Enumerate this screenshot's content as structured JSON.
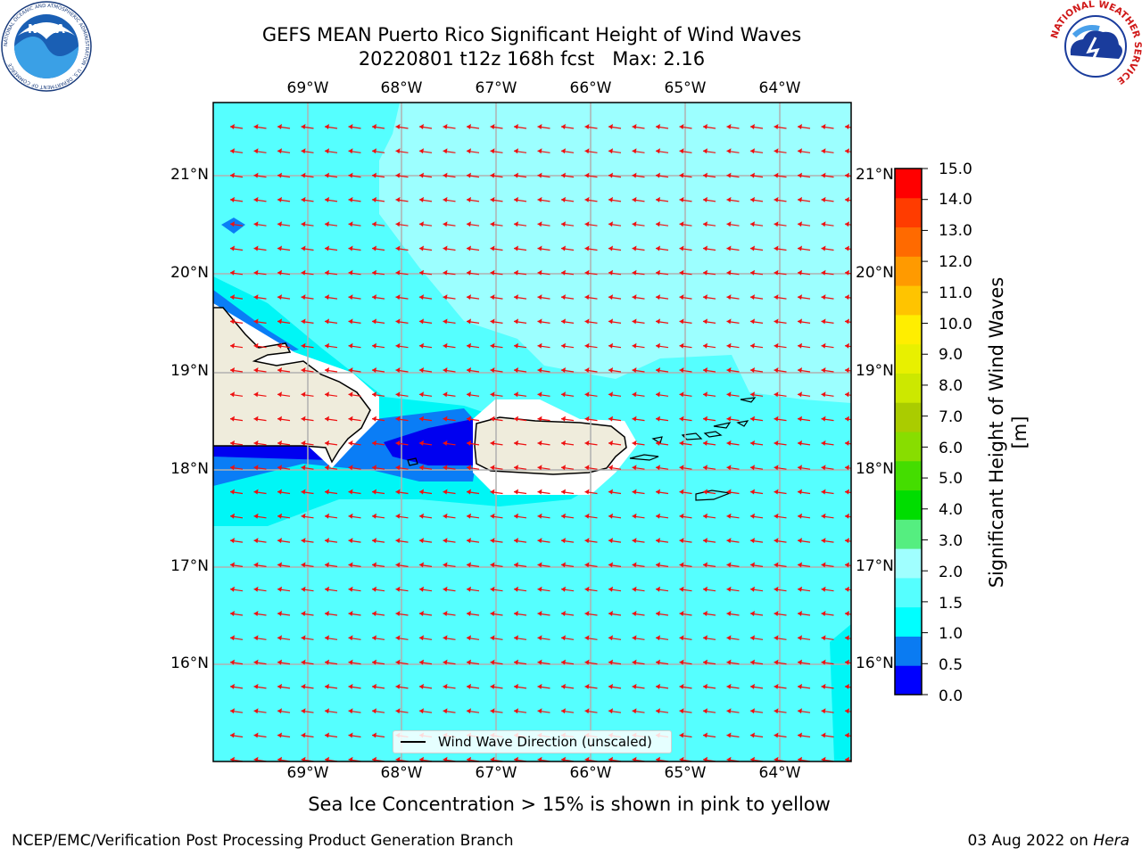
{
  "title": {
    "line1": "GEFS MEAN Puerto Rico Significant Height of Wind Waves",
    "line2": "20220801 t12z 168h fcst   Max: 2.16"
  },
  "map": {
    "lon_labels": [
      "69°W",
      "68°W",
      "67°W",
      "66°W",
      "65°W",
      "64°W"
    ],
    "lat_labels": [
      "21°N",
      "20°N",
      "19°N",
      "18°N",
      "17°N",
      "16°N"
    ],
    "legend": "Wind Wave Direction (unscaled)",
    "colors": {
      "ocean_1_5_2": "#55ffff",
      "ocean_2_3": "#9cffff",
      "ocean_1_1_5": "#00f6f6",
      "ocean_0_5_1": "#0a7df6",
      "ocean_0_0_5": "#0000f0",
      "land": "#efecdc",
      "arrow": "#ee1111"
    }
  },
  "colorbar": {
    "label": "Significant Height of Wind Waves [m]",
    "ticks": [
      "15.0",
      "14.0",
      "13.0",
      "12.0",
      "11.0",
      "10.0",
      "9.0",
      "8.0",
      "7.0",
      "6.0",
      "5.0",
      "4.0",
      "3.0",
      "2.0",
      "1.5",
      "1.0",
      "0.5",
      "0.0"
    ],
    "colors": [
      "#0000ff",
      "#0a7bf2",
      "#00ffff",
      "#55ffff",
      "#a0ffff",
      "#55ee80",
      "#00dd00",
      "#44dd00",
      "#88dd00",
      "#aacc00",
      "#cce800",
      "#e8f000",
      "#ffee00",
      "#ffc400",
      "#ff9a00",
      "#ff6a00",
      "#ff3c00",
      "#ff0000"
    ]
  },
  "footer": {
    "note": "Sea Ice Concentration > 15% is shown in pink to yellow",
    "credit_left": "NCEP/EMC/Verification Post Processing Product Generation Branch",
    "credit_right_prefix": "03 Aug 2022 on ",
    "credit_right_host": "Hera"
  },
  "logos": {
    "noaa": "NOAA",
    "noaa_ring": "NATIONAL OCEANIC AND ATMOSPHERIC ADMINISTRATION · U.S. DEPARTMENT OF COMMERCE",
    "nws_ring": "NATIONAL WEATHER SERVICE"
  }
}
